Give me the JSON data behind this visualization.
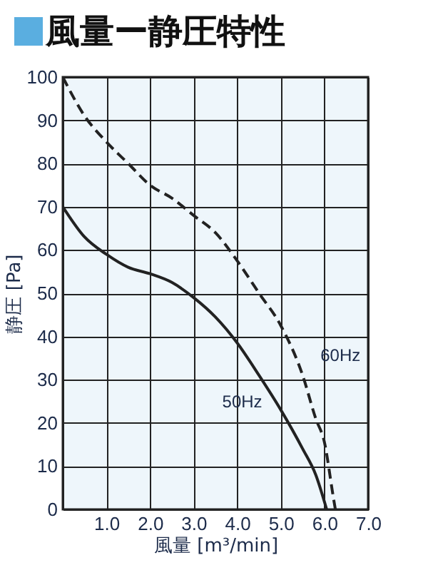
{
  "chart_data": {
    "type": "line",
    "title": "風量ー静圧特性",
    "xlabel": "風量 [m³/min]",
    "ylabel": "静圧 [Pa]",
    "xlim": [
      0,
      7
    ],
    "ylim": [
      0,
      100
    ],
    "xticks": [
      {
        "value": 0,
        "label": null
      },
      {
        "value": 1,
        "label": "1.0"
      },
      {
        "value": 2,
        "label": "2.0"
      },
      {
        "value": 3,
        "label": "3.0"
      },
      {
        "value": 4,
        "label": "4.0"
      },
      {
        "value": 5,
        "label": "5.0"
      },
      {
        "value": 6,
        "label": "6.0"
      },
      {
        "value": 7,
        "label": "7.0"
      }
    ],
    "yticks": [
      0,
      10,
      20,
      30,
      40,
      50,
      60,
      70,
      80,
      90,
      100
    ],
    "grid": true,
    "series": [
      {
        "color": "#222222",
        "line_style": "solid",
        "x": [
          0,
          0.5,
          1,
          1.5,
          2,
          2.5,
          3,
          3.5,
          4,
          4.5,
          5,
          5.5,
          5.8,
          6.05
        ],
        "values": [
          70,
          63,
          59,
          56,
          54.5,
          52.5,
          49,
          44.5,
          38.5,
          31,
          23,
          14,
          8,
          0
        ]
      },
      {
        "color": "#222222",
        "line_style": "dashed",
        "x": [
          0,
          0.5,
          1,
          1.5,
          2,
          2.5,
          3,
          3.5,
          4,
          4.5,
          5,
          5.5,
          5.8,
          6,
          6.2,
          6.25
        ],
        "values": [
          100,
          91,
          85,
          80,
          75,
          72,
          68,
          64,
          57.5,
          50,
          42.5,
          31,
          21,
          15.5,
          3,
          0
        ]
      }
    ],
    "annotations": [
      {
        "text": "50Hz",
        "x": 4.9,
        "y": 25
      },
      {
        "text": "60Hz",
        "x": 5.45,
        "y": 33
      }
    ]
  }
}
